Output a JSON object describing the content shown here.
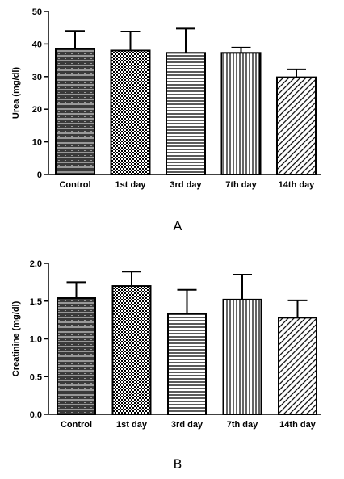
{
  "chart_data": [
    {
      "type": "bar",
      "panel_label": "A",
      "title": "",
      "xlabel": "",
      "ylabel": "Urea (mg/dl)",
      "ylim": [
        0,
        50
      ],
      "yticks": [
        "0",
        "10",
        "20",
        "30",
        "40",
        "50"
      ],
      "categories": [
        "Control",
        "1st day",
        "3rd day",
        "7th day",
        "14th day"
      ],
      "values": [
        38.5,
        38.0,
        37.3,
        37.3,
        29.8
      ],
      "errors": [
        5.5,
        5.8,
        7.4,
        1.6,
        2.4
      ],
      "error_bars": "upper only",
      "grid": false,
      "legend": "none",
      "patterns": [
        "stripes-light",
        "checker",
        "horizontal-lines",
        "vertical-lines",
        "diagonal-lines"
      ]
    },
    {
      "type": "bar",
      "panel_label": "B",
      "title": "",
      "xlabel": "",
      "ylabel": "Creatinine (mg/dl)",
      "ylim": [
        0,
        2.0
      ],
      "yticks": [
        "0.0",
        "0.5",
        "1.0",
        "1.5",
        "2.0"
      ],
      "categories": [
        "Control",
        "1st day",
        "3rd day",
        "7th day",
        "14th day"
      ],
      "values": [
        1.54,
        1.7,
        1.33,
        1.52,
        1.28
      ],
      "errors": [
        0.21,
        0.19,
        0.32,
        0.33,
        0.23
      ],
      "error_bars": "upper only",
      "grid": false,
      "legend": "none",
      "patterns": [
        "stripes-light",
        "checker",
        "horizontal-lines",
        "vertical-lines",
        "diagonal-lines"
      ]
    }
  ]
}
